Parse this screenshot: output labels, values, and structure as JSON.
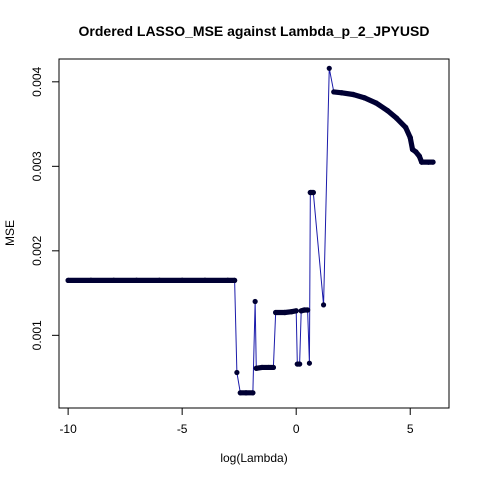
{
  "chart_data": {
    "type": "line",
    "title": "Ordered LASSO_MSE against Lambda_p_2_JPYUSD",
    "xlabel": "log(Lambda)",
    "ylabel": "MSE",
    "xlim": [
      -10.4,
      6.7
    ],
    "ylim": [
      0.00014,
      0.00427
    ],
    "x_ticks": [
      -10,
      -5,
      0,
      5
    ],
    "x_tick_labels": [
      "-10",
      "-5",
      "0",
      "5"
    ],
    "y_ticks": [
      0.001,
      0.002,
      0.003,
      0.004
    ],
    "y_tick_labels": [
      "0.001",
      "0.002",
      "0.003",
      "0.004"
    ],
    "grid": false,
    "line_color": "#1a1aaa",
    "point_color": "#000033",
    "series": [
      {
        "values": [
          {
            "x": -10.0,
            "y": 0.00165
          },
          {
            "x": -9.0,
            "y": 0.00165
          },
          {
            "x": -8.0,
            "y": 0.00165
          },
          {
            "x": -7.0,
            "y": 0.00165
          },
          {
            "x": -6.0,
            "y": 0.00165
          },
          {
            "x": -5.0,
            "y": 0.00165
          },
          {
            "x": -4.0,
            "y": 0.00165
          },
          {
            "x": -3.0,
            "y": 0.00165
          },
          {
            "x": -2.7,
            "y": 0.00165
          },
          {
            "x": -2.6,
            "y": 0.00056
          },
          {
            "x": -2.45,
            "y": 0.00032
          },
          {
            "x": -2.2,
            "y": 0.00032
          },
          {
            "x": -1.9,
            "y": 0.00032
          },
          {
            "x": -1.8,
            "y": 0.0014
          },
          {
            "x": -1.75,
            "y": 0.00061
          },
          {
            "x": -1.5,
            "y": 0.00062
          },
          {
            "x": -1.2,
            "y": 0.00062
          },
          {
            "x": -1.0,
            "y": 0.00062
          },
          {
            "x": -0.9,
            "y": 0.00127
          },
          {
            "x": -0.5,
            "y": 0.00127
          },
          {
            "x": -0.2,
            "y": 0.00128
          },
          {
            "x": 0.0,
            "y": 0.00129
          },
          {
            "x": 0.05,
            "y": 0.00066
          },
          {
            "x": 0.15,
            "y": 0.00066
          },
          {
            "x": 0.22,
            "y": 0.00129
          },
          {
            "x": 0.35,
            "y": 0.0013
          },
          {
            "x": 0.5,
            "y": 0.0013
          },
          {
            "x": 0.58,
            "y": 0.00067
          },
          {
            "x": 0.62,
            "y": 0.00269
          },
          {
            "x": 0.75,
            "y": 0.00269
          },
          {
            "x": 1.2,
            "y": 0.00136
          },
          {
            "x": 1.45,
            "y": 0.00416
          },
          {
            "x": 1.65,
            "y": 0.00388
          },
          {
            "x": 2.0,
            "y": 0.00387
          },
          {
            "x": 2.5,
            "y": 0.00385
          },
          {
            "x": 3.0,
            "y": 0.00381
          },
          {
            "x": 3.5,
            "y": 0.00375
          },
          {
            "x": 4.0,
            "y": 0.00366
          },
          {
            "x": 4.4,
            "y": 0.00357
          },
          {
            "x": 4.8,
            "y": 0.00346
          },
          {
            "x": 5.0,
            "y": 0.00334
          },
          {
            "x": 5.1,
            "y": 0.0032
          },
          {
            "x": 5.25,
            "y": 0.00317
          },
          {
            "x": 5.4,
            "y": 0.00312
          },
          {
            "x": 5.5,
            "y": 0.00305
          },
          {
            "x": 5.8,
            "y": 0.00305
          },
          {
            "x": 6.0,
            "y": 0.00305
          }
        ]
      }
    ]
  }
}
